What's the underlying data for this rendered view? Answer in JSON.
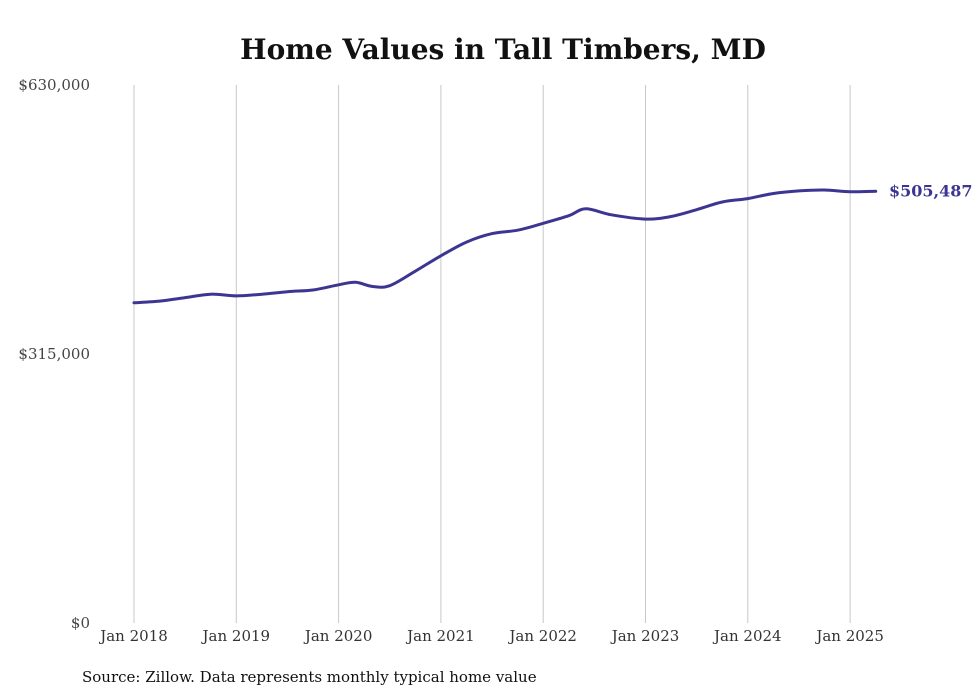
{
  "chart_data": {
    "type": "line",
    "title": "Home Values in Tall Timbers, MD",
    "source": "Source: Zillow. Data represents monthly typical home value",
    "ylim": [
      0,
      630000
    ],
    "yticks": [
      {
        "value": 0,
        "label": "$0"
      },
      {
        "value": 315000,
        "label": "$315,000"
      },
      {
        "value": 630000,
        "label": "$630,000"
      }
    ],
    "xlim": [
      "2018-01",
      "2025-04"
    ],
    "xticks": [
      {
        "date": "2018-01",
        "label": "Jan 2018"
      },
      {
        "date": "2019-01",
        "label": "Jan 2019"
      },
      {
        "date": "2020-01",
        "label": "Jan 2020"
      },
      {
        "date": "2021-01",
        "label": "Jan 2021"
      },
      {
        "date": "2022-01",
        "label": "Jan 2022"
      },
      {
        "date": "2023-01",
        "label": "Jan 2023"
      },
      {
        "date": "2024-01",
        "label": "Jan 2024"
      },
      {
        "date": "2025-01",
        "label": "Jan 2025"
      }
    ],
    "grid": "vertical",
    "line_color": "#3d3592",
    "end_label": "$505,487",
    "series": [
      {
        "points": [
          {
            "x": "2018-01",
            "y": 375000
          },
          {
            "x": "2018-04",
            "y": 377000
          },
          {
            "x": "2018-07",
            "y": 381000
          },
          {
            "x": "2018-10",
            "y": 385000
          },
          {
            "x": "2019-01",
            "y": 383000
          },
          {
            "x": "2019-04",
            "y": 385000
          },
          {
            "x": "2019-07",
            "y": 388000
          },
          {
            "x": "2019-10",
            "y": 390000
          },
          {
            "x": "2020-01",
            "y": 396000
          },
          {
            "x": "2020-03",
            "y": 399000
          },
          {
            "x": "2020-05",
            "y": 394000
          },
          {
            "x": "2020-07",
            "y": 395000
          },
          {
            "x": "2020-10",
            "y": 412000
          },
          {
            "x": "2021-01",
            "y": 430000
          },
          {
            "x": "2021-04",
            "y": 446000
          },
          {
            "x": "2021-07",
            "y": 456000
          },
          {
            "x": "2021-10",
            "y": 460000
          },
          {
            "x": "2022-01",
            "y": 468000
          },
          {
            "x": "2022-04",
            "y": 477000
          },
          {
            "x": "2022-06",
            "y": 485000
          },
          {
            "x": "2022-09",
            "y": 478000
          },
          {
            "x": "2023-01",
            "y": 473000
          },
          {
            "x": "2023-04",
            "y": 476000
          },
          {
            "x": "2023-07",
            "y": 484000
          },
          {
            "x": "2023-10",
            "y": 493000
          },
          {
            "x": "2024-01",
            "y": 497000
          },
          {
            "x": "2024-04",
            "y": 503000
          },
          {
            "x": "2024-07",
            "y": 506000
          },
          {
            "x": "2024-10",
            "y": 507000
          },
          {
            "x": "2025-01",
            "y": 505000
          },
          {
            "x": "2025-04",
            "y": 505487
          }
        ]
      }
    ]
  }
}
